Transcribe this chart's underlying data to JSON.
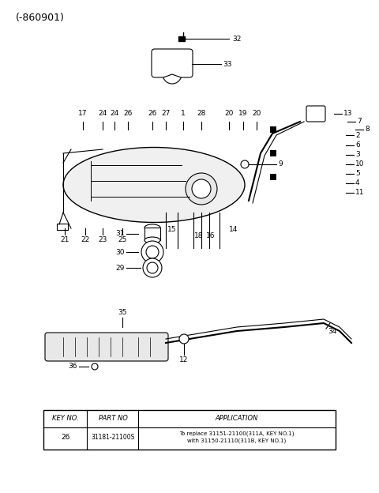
{
  "title": "(-860901)",
  "bg_color": "#ffffff",
  "table": {
    "headers": [
      "KEY NO.",
      "PART NO",
      "APPLICATION"
    ],
    "row": [
      "26",
      "31181-21100S",
      "To replace 31151-21100(311A, KEY NO.1)\nwith 31150-21110(311B, KEY NO.1)"
    ]
  },
  "label_fontsize": 6.5,
  "title_fontsize": 9
}
